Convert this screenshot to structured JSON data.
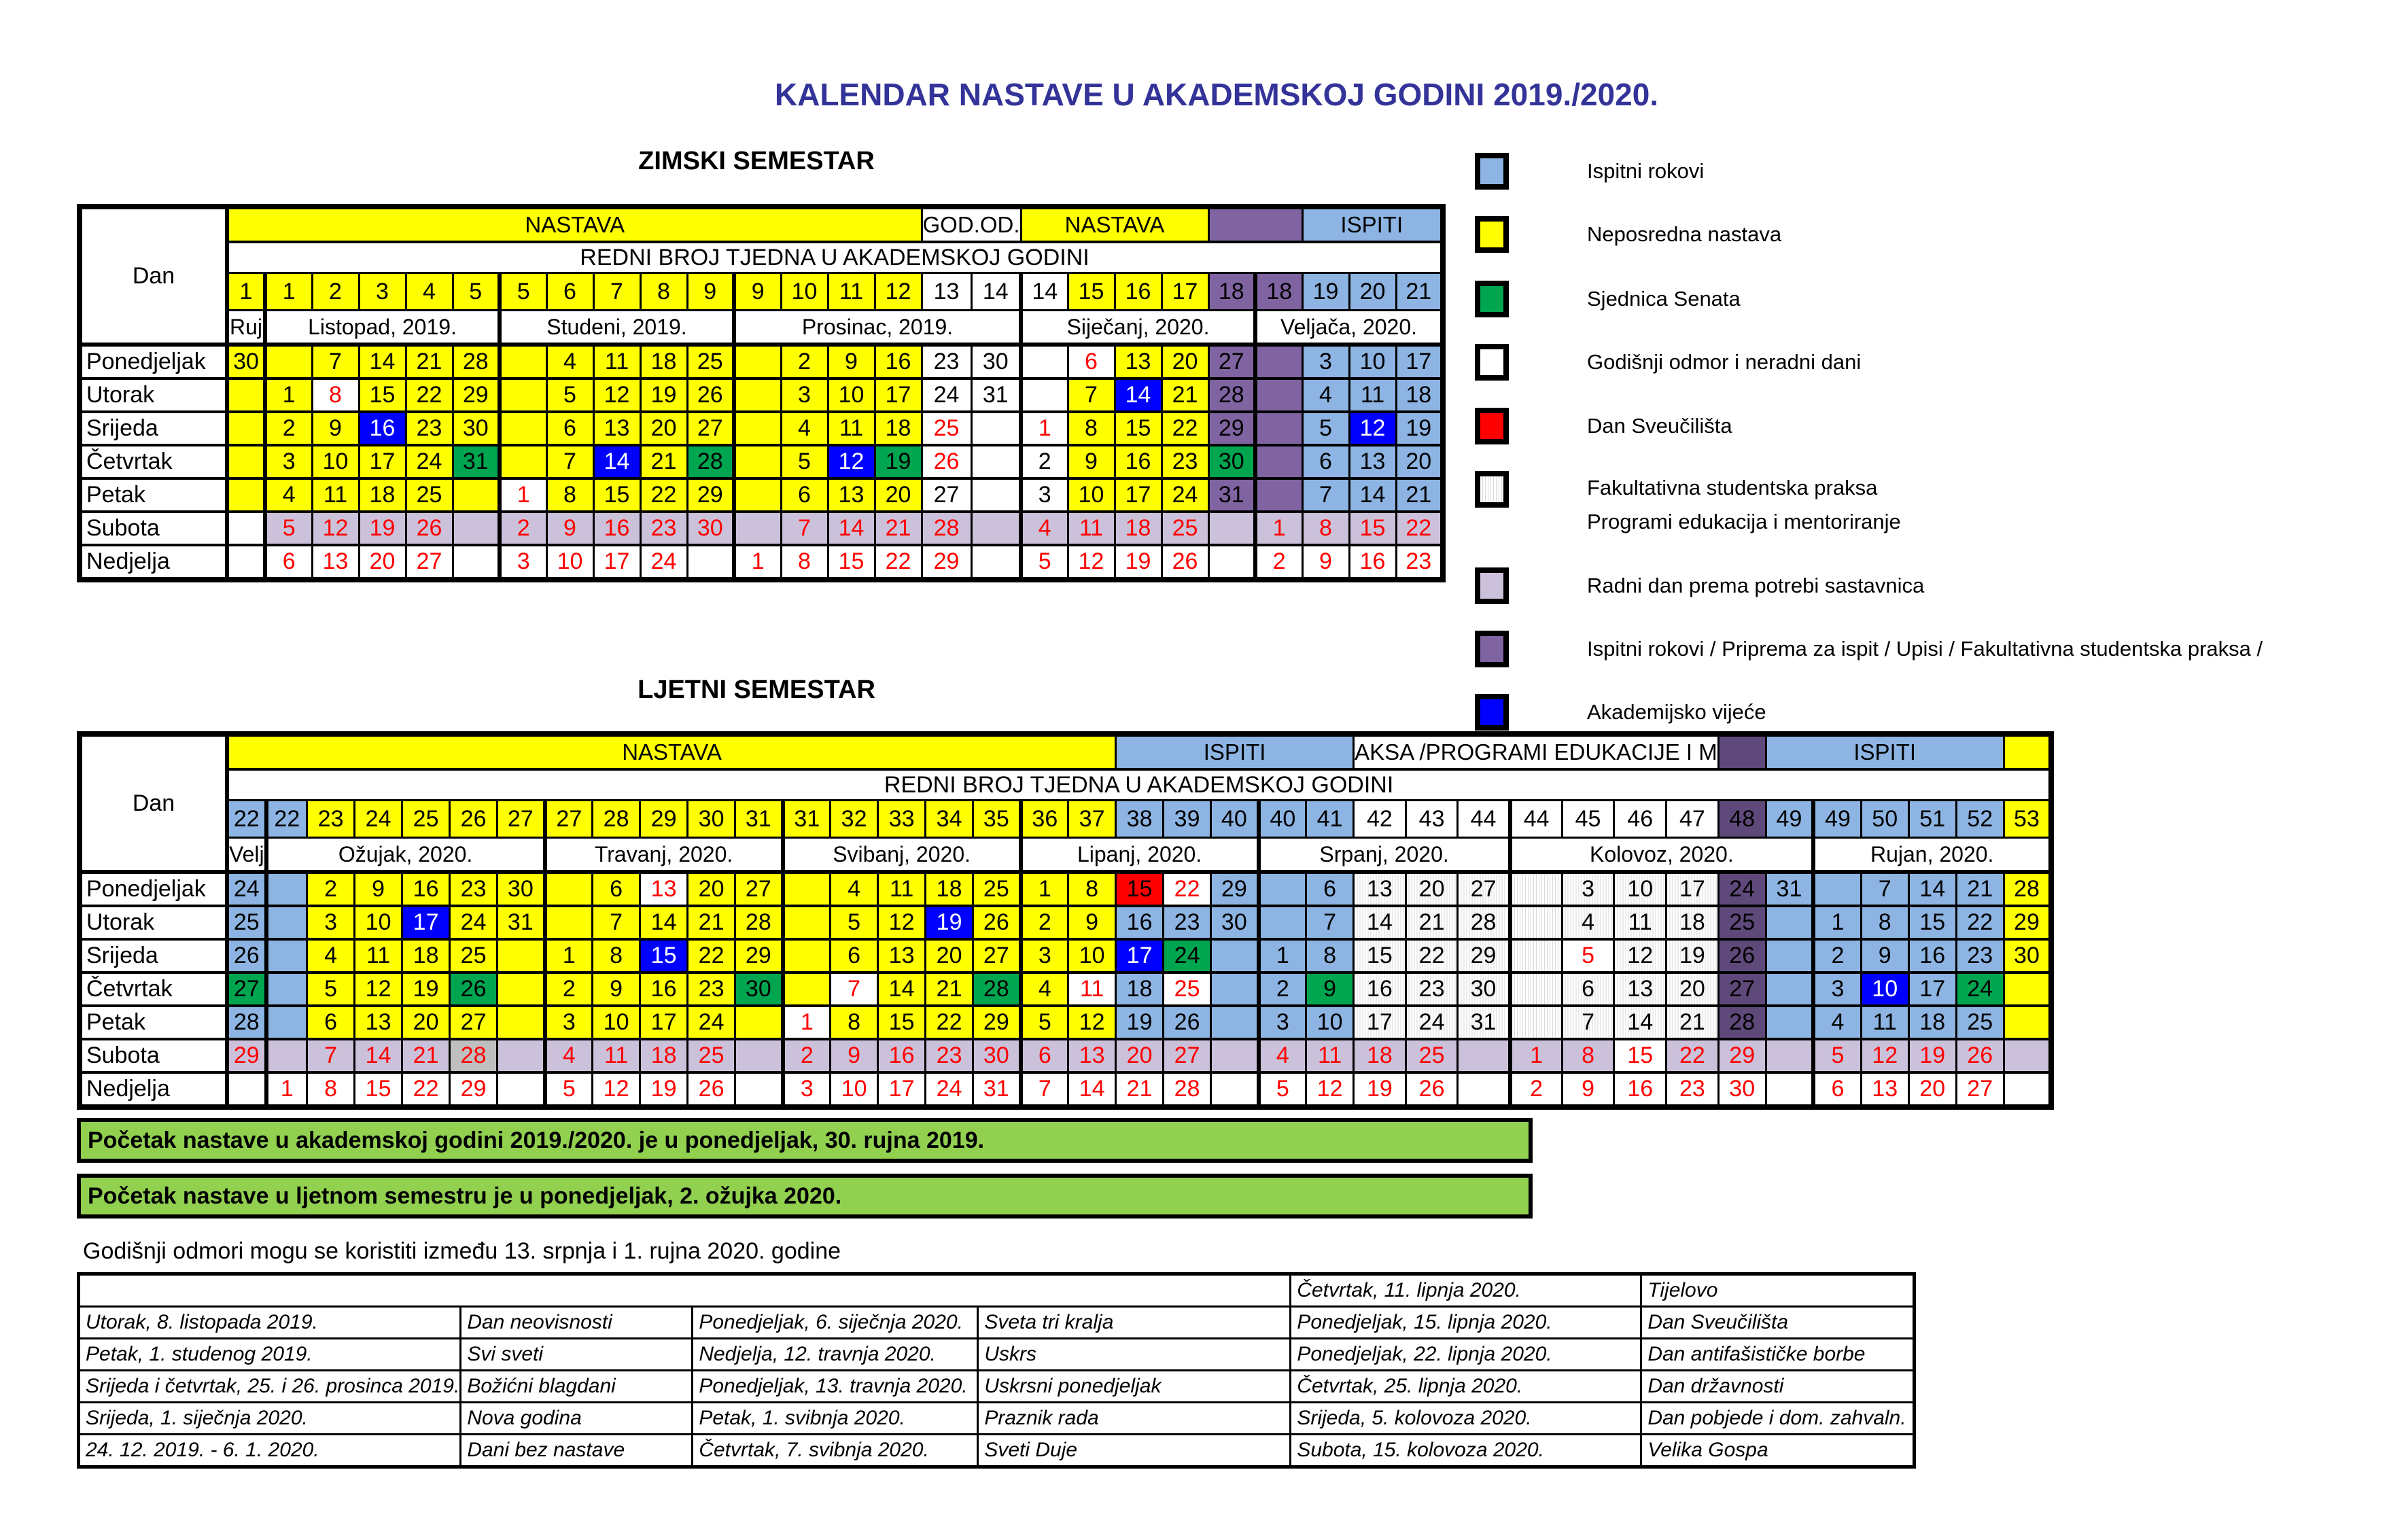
{
  "title": "KALENDAR NASTAVE U AKADEMSKOJ GODINI 2019./2020.",
  "colors": {
    "yellow": "#FFFF00",
    "lightblue": "#8DB4E2",
    "blue": "#0000FF",
    "green": "#00A550",
    "red": "#FF0000",
    "lavender": "#CCC1DA",
    "purple": "#8064A2",
    "darkpurple": "#5F497A",
    "gray": "#BFBFBF",
    "stripe": "#D9D9D9",
    "note_green": "#92D050",
    "title_blue": "#333399"
  },
  "winter": {
    "heading": "ZIMSKI SEMESTAR",
    "day_label": "Dan",
    "weeks_title": "REDNI BROJ TJEDNA U AKADEMSKOJ GODINI",
    "bands": [
      [
        "NASTAVA",
        "y",
        15
      ],
      [
        "GOD.OD.",
        "w",
        2
      ],
      [
        "NASTAVA",
        "y",
        4
      ],
      [
        "",
        "pur",
        2
      ],
      [
        "ISPITI",
        "lb",
        3
      ]
    ],
    "weeks": [
      "1|y",
      "1|y",
      "2|y",
      "3|y",
      "4|y",
      "5|y",
      "5|y",
      "6|y",
      "7|y",
      "8|y",
      "9|y",
      "9|y",
      "10|y",
      "11|y",
      "12|y",
      "13|w",
      "14|w",
      "14|w",
      "15|y",
      "16|y",
      "17|y",
      "18|pur",
      "18|pur",
      "19|lb",
      "20|lb",
      "21|lb"
    ],
    "months": [
      [
        "Ruj",
        1
      ],
      [
        "Listopad, 2019.",
        5
      ],
      [
        "Studeni, 2019.",
        5
      ],
      [
        "Prosinac, 2019.",
        6
      ],
      [
        "Siječanj, 2020.",
        5
      ],
      [
        "Veljača, 2020.",
        4
      ]
    ],
    "rows": [
      {
        "day": "Ponedjeljak",
        "cells": [
          "30|y",
          "|y",
          "7|y",
          "14|y",
          "21|y",
          "28|y",
          "|y",
          "4|y",
          "11|y",
          "18|y",
          "25|y",
          "|y",
          "2|y",
          "9|y",
          "16|y",
          "23|w",
          "30|w",
          "|w",
          "6|w|r",
          "13|y",
          "20|y",
          "27|pur",
          "|pur",
          "3|lb",
          "10|lb",
          "17|lb"
        ]
      },
      {
        "day": "Utorak",
        "cells": [
          "|y",
          "1|y",
          "8|w|r",
          "15|y",
          "22|y",
          "29|y",
          "|y",
          "5|y",
          "12|y",
          "19|y",
          "26|y",
          "|y",
          "3|y",
          "10|y",
          "17|y",
          "24|w",
          "31|w",
          "|w",
          "7|y",
          "14|b|w",
          "21|y",
          "28|pur",
          "|pur",
          "4|lb",
          "11|lb",
          "18|lb"
        ]
      },
      {
        "day": "Srijeda",
        "cells": [
          "|y",
          "2|y",
          "9|y",
          "16|b|w",
          "23|y",
          "30|y",
          "|y",
          "6|y",
          "13|y",
          "20|y",
          "27|y",
          "|y",
          "4|y",
          "11|y",
          "18|y",
          "25|w|r",
          "|w",
          "1|w|r",
          "8|y",
          "15|y",
          "22|y",
          "29|pur",
          "|pur",
          "5|lb",
          "12|b|w",
          "19|lb"
        ]
      },
      {
        "day": "Četvrtak",
        "cells": [
          "|y",
          "3|y",
          "10|y",
          "17|y",
          "24|y",
          "31|g",
          "|y",
          "7|y",
          "14|b|w",
          "21|y",
          "28|g",
          "|y",
          "5|y",
          "12|b|w",
          "19|g",
          "26|w|r",
          "|w",
          "2|w",
          "9|y",
          "16|y",
          "23|y",
          "30|g",
          "|pur",
          "6|lb",
          "13|lb",
          "20|lb"
        ]
      },
      {
        "day": "Petak",
        "cells": [
          "|y",
          "4|y",
          "11|y",
          "18|y",
          "25|y",
          "|y",
          "1|w|r",
          "8|y",
          "15|y",
          "22|y",
          "29|y",
          "|y",
          "6|y",
          "13|y",
          "20|y",
          "27|w",
          "|w",
          "3|w",
          "10|y",
          "17|y",
          "24|y",
          "31|pur",
          "|pur",
          "7|lb",
          "14|lb",
          "21|lb"
        ]
      },
      {
        "day": "Subota",
        "cells": [
          "|w",
          "5|lav|r",
          "12|lav|r",
          "19|lav|r",
          "26|lav|r",
          "|lav",
          "2|lav|r",
          "9|lav|r",
          "16|lav|r",
          "23|lav|r",
          "30|lav|r",
          "|lav",
          "7|lav|r",
          "14|lav|r",
          "21|lav|r",
          "28|lav|r",
          "|lav",
          "4|lav|r",
          "11|lav|r",
          "18|lav|r",
          "25|lav|r",
          "|lav",
          "1|lav|r",
          "8|lav|r",
          "15|lav|r",
          "22|lav|r"
        ]
      },
      {
        "day": "Nedjelja",
        "cells": [
          "|w",
          "6|w|r",
          "13|w|r",
          "20|w|r",
          "27|w|r",
          "|w",
          "3|w|r",
          "10|w|r",
          "17|w|r",
          "24|w|r",
          "|w",
          "1|w|r",
          "8|w|r",
          "15|w|r",
          "22|w|r",
          "29|w|r",
          "|w",
          "5|w|r",
          "12|w|r",
          "19|w|r",
          "26|w|r",
          "|w",
          "2|w|r",
          "9|w|r",
          "16|w|r",
          "23|w|r"
        ]
      }
    ]
  },
  "summer": {
    "heading": "LJETNI SEMESTAR",
    "day_label": "Dan",
    "weeks_title": "REDNI BROJ TJEDNA U AKADEMSKOJ GODINI",
    "bands": [
      [
        "NASTAVA",
        "y",
        19
      ],
      [
        "ISPITI",
        "lb",
        5
      ],
      [
        "AKSA /PROGRAMI EDUKACIJE I M",
        "w",
        7
      ],
      [
        "",
        "dpur",
        1
      ],
      [
        "ISPITI",
        "lb",
        5
      ],
      [
        "",
        "y",
        1
      ]
    ],
    "weeks": [
      "22|lb",
      "22|lb",
      "23|y",
      "24|y",
      "25|y",
      "26|y",
      "27|y",
      "27|y",
      "28|y",
      "29|y",
      "30|y",
      "31|y",
      "31|y",
      "32|y",
      "33|y",
      "34|y",
      "35|y",
      "36|y",
      "37|y",
      "38|lb",
      "39|lb",
      "40|lb",
      "40|lb",
      "41|lb",
      "42|w",
      "43|w",
      "44|w",
      "44|w",
      "45|w",
      "46|w",
      "47|w",
      "48|dpur",
      "49|lb",
      "49|lb",
      "50|lb",
      "51|lb",
      "52|lb",
      "53|y"
    ],
    "months": [
      [
        "Velj",
        1
      ],
      [
        "Ožujak, 2020.",
        6
      ],
      [
        "Travanj, 2020.",
        5
      ],
      [
        "Svibanj, 2020.",
        5
      ],
      [
        "Lipanj, 2020.",
        5
      ],
      [
        "Srpanj, 2020.",
        5
      ],
      [
        "Kolovoz, 2020.",
        6
      ],
      [
        "Rujan, 2020.",
        5
      ]
    ],
    "rows": [
      {
        "day": "Ponedjeljak",
        "cells": [
          "24|lb",
          "|lb",
          "2|y",
          "9|y",
          "16|y",
          "23|y",
          "30|y",
          "|y",
          "6|y",
          "13|w|r",
          "20|y",
          "27|y",
          "|y",
          "4|y",
          "11|y",
          "18|y",
          "25|y",
          "1|y",
          "8|y",
          "15|r",
          "22|w|r",
          "29|lb",
          "|lb",
          "6|lb",
          "13|st",
          "20|st",
          "27|st",
          "|st",
          "3|st",
          "10|st",
          "17|st",
          "24|dpur",
          "31|lb",
          "|lb",
          "7|lb",
          "14|lb",
          "21|lb",
          "28|y"
        ]
      },
      {
        "day": "Utorak",
        "cells": [
          "25|lb",
          "|lb",
          "3|y",
          "10|y",
          "17|b|w",
          "24|y",
          "31|y",
          "|y",
          "7|y",
          "14|y",
          "21|y",
          "28|y",
          "|y",
          "5|y",
          "12|y",
          "19|b|w",
          "26|y",
          "2|y",
          "9|y",
          "16|lb",
          "23|lb",
          "30|lb",
          "|lb",
          "7|lb",
          "14|st",
          "21|st",
          "28|st",
          "|st",
          "4|st",
          "11|st",
          "18|st",
          "25|dpur",
          "|lb",
          "1|lb",
          "8|lb",
          "15|lb",
          "22|lb",
          "29|y"
        ]
      },
      {
        "day": "Srijeda",
        "cells": [
          "26|lb",
          "|lb",
          "4|y",
          "11|y",
          "18|y",
          "25|y",
          "|y",
          "1|y",
          "8|y",
          "15|b|w",
          "22|y",
          "29|y",
          "|y",
          "6|y",
          "13|y",
          "20|y",
          "27|y",
          "3|y",
          "10|y",
          "17|b|w",
          "24|g",
          "|lb",
          "1|lb",
          "8|lb",
          "15|st",
          "22|st",
          "29|st",
          "|st",
          "5|w|r",
          "12|st",
          "19|st",
          "26|dpur",
          "|lb",
          "2|lb",
          "9|lb",
          "16|lb",
          "23|lb",
          "30|y"
        ]
      },
      {
        "day": "Četvrtak",
        "cells": [
          "27|g",
          "|lb",
          "5|y",
          "12|y",
          "19|y",
          "26|g",
          "|y",
          "2|y",
          "9|y",
          "16|y",
          "23|y",
          "30|g",
          "|y",
          "7|w|r",
          "14|y",
          "21|y",
          "28|g",
          "4|y",
          "11|w|r",
          "18|lb",
          "25|w|r",
          "|lb",
          "2|lb",
          "9|g",
          "16|st",
          "23|st",
          "30|st",
          "|st",
          "6|st",
          "13|st",
          "20|st",
          "27|dpur",
          "|lb",
          "3|lb",
          "10|b|w",
          "17|lb",
          "24|g",
          "|y"
        ]
      },
      {
        "day": "Petak",
        "cells": [
          "28|lb",
          "|lb",
          "6|y",
          "13|y",
          "20|y",
          "27|y",
          "|y",
          "3|y",
          "10|y",
          "17|y",
          "24|y",
          "|y",
          "1|w|r",
          "8|y",
          "15|y",
          "22|y",
          "29|y",
          "5|y",
          "12|y",
          "19|lb",
          "26|lb",
          "|lb",
          "3|lb",
          "10|lb",
          "17|st",
          "24|st",
          "31|st",
          "|st",
          "7|st",
          "14|st",
          "21|st",
          "28|dpur",
          "|lb",
          "4|lb",
          "11|lb",
          "18|lb",
          "25|lb",
          "|y"
        ]
      },
      {
        "day": "Subota",
        "cells": [
          "29|lav|r",
          "|lav",
          "7|lav|r",
          "14|lav|r",
          "21|lav|r",
          "28|gy|r",
          "|lav",
          "4|lav|r",
          "11|lav|r",
          "18|lav|r",
          "25|lav|r",
          "|lav",
          "2|lav|r",
          "9|lav|r",
          "16|lav|r",
          "23|lav|r",
          "30|lav|r",
          "6|lav|r",
          "13|lav|r",
          "20|lav|r",
          "27|lav|r",
          "|lav",
          "4|lav|r",
          "11|lav|r",
          "18|lav|r",
          "25|lav|r",
          "|lav",
          "1|lav|r",
          "8|lav|r",
          "15|w|r",
          "22|lav|r",
          "29|lav|r",
          "|lav",
          "5|lav|r",
          "12|lav|r",
          "19|lav|r",
          "26|lav|r",
          "|lav"
        ]
      },
      {
        "day": "Nedjelja",
        "cells": [
          "|w",
          "1|w|r",
          "8|w|r",
          "15|w|r",
          "22|w|r",
          "29|w|r",
          "|w",
          "5|w|r",
          "12|w|r",
          "19|w|r",
          "26|w|r",
          "|w",
          "3|w|r",
          "10|w|r",
          "17|w|r",
          "24|w|r",
          "31|w|r",
          "7|w|r",
          "14|w|r",
          "21|w|r",
          "28|w|r",
          "|w",
          "5|w|r",
          "12|w|r",
          "19|w|r",
          "26|w|r",
          "|w",
          "2|w|r",
          "9|w|r",
          "16|w|r",
          "23|w|r",
          "30|w|r",
          "|w",
          "6|w|r",
          "13|w|r",
          "20|w|r",
          "27|w|r",
          "|w"
        ]
      }
    ]
  },
  "legend": {
    "items": [
      {
        "color": "lb",
        "label": "Ispitni rokovi"
      },
      {
        "color": "y",
        "label": "Neposredna nastava"
      },
      {
        "color": "g",
        "label": "Sjednica Senata"
      },
      {
        "color": "w",
        "label": "Godišnji odmor i neradni dani"
      },
      {
        "color": "r",
        "label": "Dan Sveučilišta"
      },
      {
        "color": "st",
        "label": "Fakultativna studentska praksa",
        "label2": "Programi edukacija i mentoriranje"
      },
      {
        "color": "lav",
        "label": "Radni dan prema potrebi sastavnica"
      },
      {
        "color": "pur",
        "label": "Ispitni rokovi / Priprema za ispit / Upisi / Fakultativna studentska praksa /"
      },
      {
        "color": "b",
        "label": "Akademijsko vijeće"
      }
    ]
  },
  "notes": {
    "note1": "Početak nastave u akademskoj godini 2019./2020. je u ponedjeljak, 30. rujna 2019.",
    "note2": "Početak nastave u ljetnom semestru je u ponedjeljak, 2. ožujka 2020.",
    "vacation": "Godišnji odmori  mogu se koristiti između 13. srpnja i 1. rujna 2020. godine"
  },
  "holidays": {
    "rows": [
      [
        "",
        "",
        "",
        "",
        "Četvrtak, 11. lipnja 2020.",
        "Tijelovo"
      ],
      [
        "Utorak, 8. listopada 2019.",
        "Dan neovisnosti",
        "Ponedjeljak, 6. siječnja 2020.",
        "Sveta tri kralja",
        "Ponedjeljak, 15. lipnja 2020.",
        "Dan Sveučilišta"
      ],
      [
        "Petak, 1. studenog 2019.",
        "Svi sveti",
        "Nedjelja, 12. travnja 2020.",
        "Uskrs",
        "Ponedjeljak, 22. lipnja 2020.",
        "Dan antifašističke borbe"
      ],
      [
        "Srijeda i četvrtak, 25. i 26. prosinca 2019.",
        "Božićni blagdani",
        "Ponedjeljak, 13. travnja 2020.",
        "Uskrsni ponedjeljak",
        "Četvrtak, 25. lipnja 2020.",
        "Dan državnosti"
      ],
      [
        "Srijeda, 1. siječnja 2020.",
        "Nova godina",
        "Petak, 1. svibnja 2020.",
        "Praznik rada",
        "Srijeda, 5. kolovoza 2020.",
        "Dan pobjede i dom. zahvaln."
      ],
      [
        "24. 12. 2019. - 6. 1. 2020.",
        "Dani bez nastave",
        "Četvrtak, 7. svibnja 2020.",
        "Sveti Duje",
        "Subota, 15. kolovoza 2020.",
        "Velika Gospa"
      ]
    ]
  }
}
